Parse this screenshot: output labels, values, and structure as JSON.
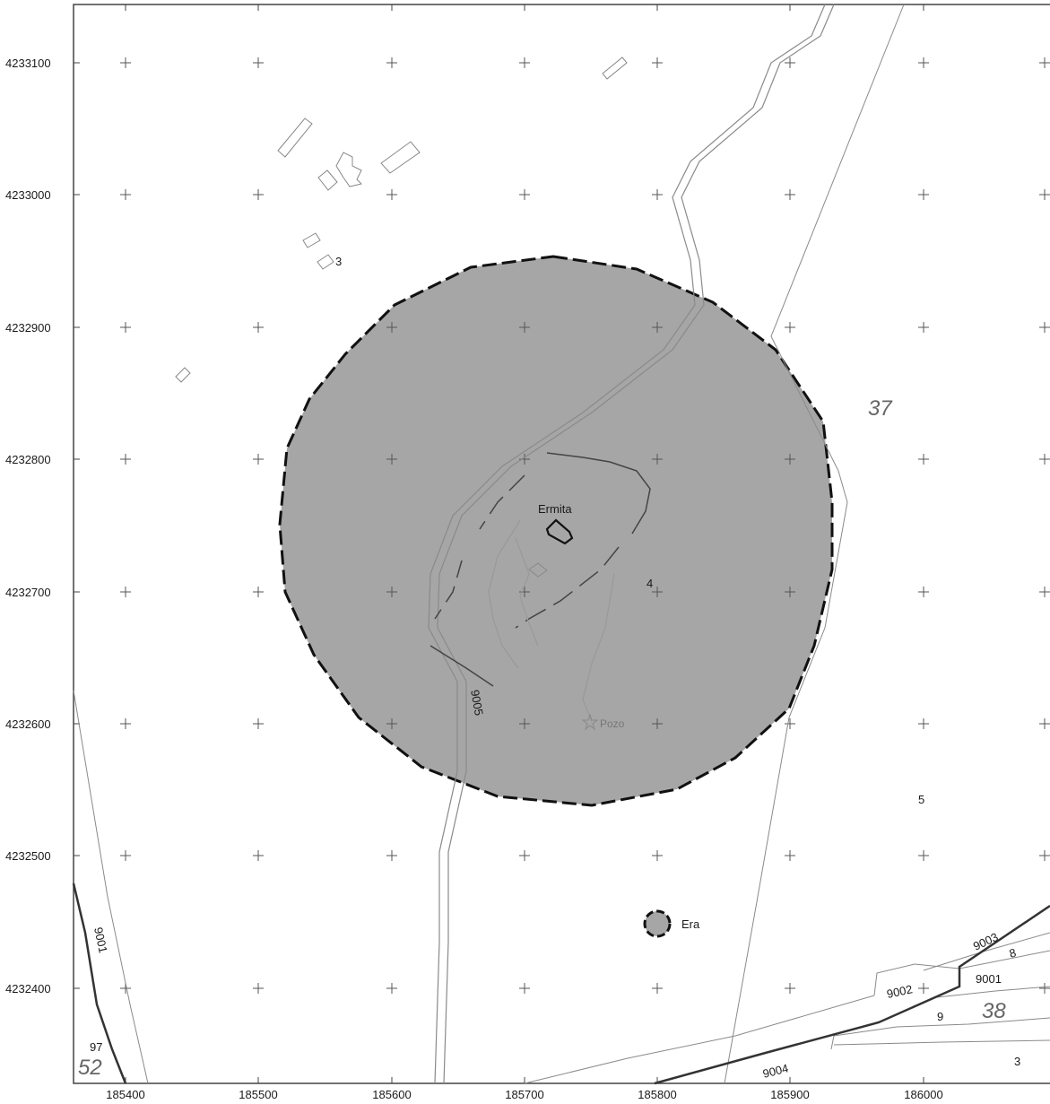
{
  "axes": {
    "x_ticks": [
      "185400",
      "185500",
      "185600",
      "185700",
      "185800",
      "185900",
      "186000"
    ],
    "y_ticks": [
      "4233100",
      "4233000",
      "4232900",
      "4232800",
      "4232700",
      "4232600",
      "4232500",
      "4232400"
    ]
  },
  "features": {
    "ermita": "Ermita",
    "pozo": "Pozo",
    "era": "Era"
  },
  "parcels": {
    "p3_top": "3",
    "p4": "4",
    "p5": "5",
    "p37": "37",
    "p38": "38",
    "p52": "52",
    "p97": "97",
    "p8": "8",
    "p9": "9",
    "p3_bottom": "3"
  },
  "roads": {
    "r9005": "9005",
    "r9001_left": "9001",
    "r9003": "9003",
    "r9001_right": "9001",
    "r9002": "9002",
    "r9004": "9004"
  },
  "colors": {
    "buffer_fill": "#a6a6a6",
    "buffer_stroke": "#111111",
    "line": "#8a8a8a",
    "dark_line": "#333333"
  }
}
